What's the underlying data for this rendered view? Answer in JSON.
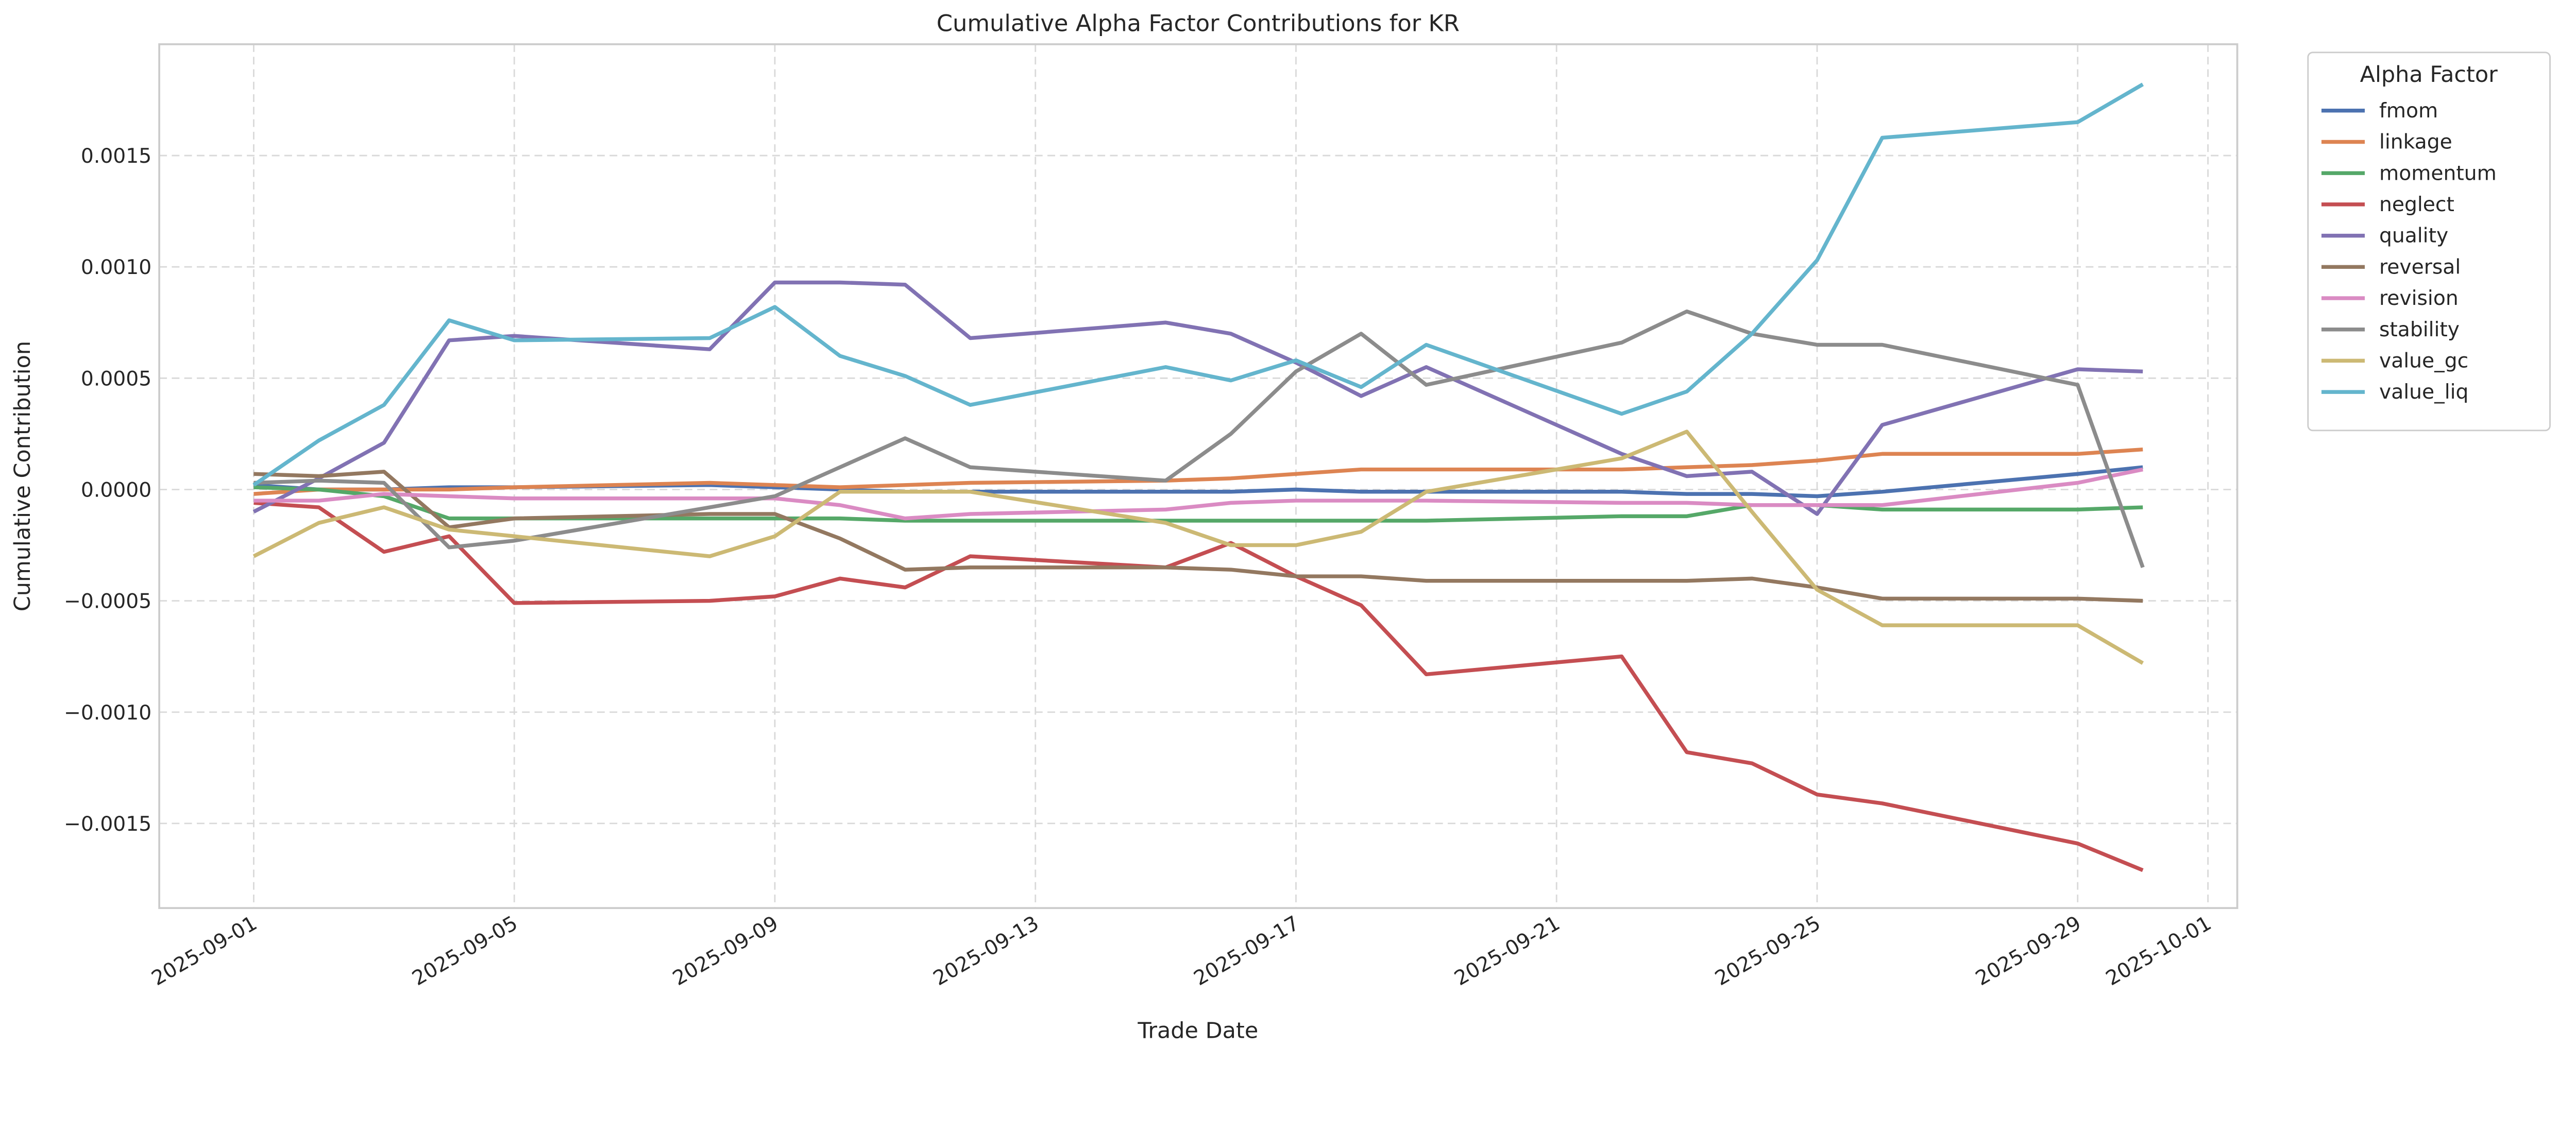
{
  "chart_data": {
    "type": "line",
    "title": "Cumulative Alpha Factor Contributions for KR",
    "xlabel": "Trade Date",
    "ylabel": "Cumulative Contribution",
    "ylim": [
      -0.00188,
      0.002
    ],
    "xlim": [
      "2025-08-30",
      "2025-10-01"
    ],
    "grid": true,
    "legend_title": "Alpha Factor",
    "legend_position": "outside-top-right",
    "x_ticks": [
      "2025-09-01",
      "2025-09-05",
      "2025-09-09",
      "2025-09-13",
      "2025-09-17",
      "2025-09-21",
      "2025-09-25",
      "2025-09-29",
      "2025-10-01"
    ],
    "y_ticks": [
      "−0.0015",
      "−0.0010",
      "−0.0005",
      "0.0000",
      "0.0005",
      "0.0010",
      "0.0015"
    ],
    "y_tick_values": [
      -0.0015,
      -0.001,
      -0.0005,
      0,
      0.0005,
      0.001,
      0.0015
    ],
    "x": [
      "2025-09-01",
      "2025-09-02",
      "2025-09-03",
      "2025-09-04",
      "2025-09-05",
      "2025-09-08",
      "2025-09-09",
      "2025-09-10",
      "2025-09-11",
      "2025-09-12",
      "2025-09-15",
      "2025-09-16",
      "2025-09-17",
      "2025-09-18",
      "2025-09-19",
      "2025-09-22",
      "2025-09-23",
      "2025-09-24",
      "2025-09-25",
      "2025-09-26",
      "2025-09-29",
      "2025-09-30"
    ],
    "series": [
      {
        "name": "fmom",
        "color": "#4c72b0",
        "values": [
          2e-05,
          0.0,
          0.0,
          1e-05,
          1e-05,
          2e-05,
          1e-05,
          0.0,
          -1e-05,
          -1e-05,
          -1e-05,
          -1e-05,
          0.0,
          -1e-05,
          -1e-05,
          -1e-05,
          -2e-05,
          -2e-05,
          -3e-05,
          -1e-05,
          7e-05,
          0.0001
        ]
      },
      {
        "name": "linkage",
        "color": "#dd8452",
        "values": [
          -2e-05,
          0.0,
          0.0,
          0.0,
          1e-05,
          3e-05,
          2e-05,
          1e-05,
          2e-05,
          3e-05,
          4e-05,
          5e-05,
          7e-05,
          9e-05,
          9e-05,
          9e-05,
          0.0001,
          0.00011,
          0.00013,
          0.00016,
          0.00016,
          0.00018
        ]
      },
      {
        "name": "momentum",
        "color": "#55a868",
        "values": [
          1e-05,
          0.0,
          -3e-05,
          -0.00013,
          -0.00013,
          -0.00013,
          -0.00013,
          -0.00013,
          -0.00014,
          -0.00014,
          -0.00014,
          -0.00014,
          -0.00014,
          -0.00014,
          -0.00014,
          -0.00012,
          -0.00012,
          -7e-05,
          -7e-05,
          -9e-05,
          -9e-05,
          -8e-05
        ]
      },
      {
        "name": "neglect",
        "color": "#c44e52",
        "values": [
          -6e-05,
          -8e-05,
          -0.00028,
          -0.00021,
          -0.00051,
          -0.0005,
          -0.00048,
          -0.0004,
          -0.00044,
          -0.0003,
          -0.00035,
          -0.00024,
          -0.00039,
          -0.00052,
          -0.00083,
          -0.00075,
          -0.00118,
          -0.00123,
          -0.00137,
          -0.00141,
          -0.00159,
          -0.00171
        ]
      },
      {
        "name": "quality",
        "color": "#8172b3",
        "values": [
          -0.0001,
          5e-05,
          0.00021,
          0.00067,
          0.00069,
          0.00063,
          0.00093,
          0.00093,
          0.00092,
          0.00068,
          0.00075,
          0.0007,
          0.00057,
          0.00042,
          0.00055,
          0.00016,
          6e-05,
          8e-05,
          -0.00011,
          0.00029,
          0.00054,
          0.00053
        ]
      },
      {
        "name": "reversal",
        "color": "#937860",
        "values": [
          7e-05,
          6e-05,
          8e-05,
          -0.00017,
          -0.00013,
          -0.00011,
          -0.00011,
          -0.00022,
          -0.00036,
          -0.00035,
          -0.00035,
          -0.00036,
          -0.00039,
          -0.00039,
          -0.00041,
          -0.00041,
          -0.00041,
          -0.0004,
          -0.00044,
          -0.00049,
          -0.00049,
          -0.0005
        ]
      },
      {
        "name": "revision",
        "color": "#da8bc3",
        "values": [
          -5e-05,
          -5e-05,
          -2e-05,
          -3e-05,
          -4e-05,
          -4e-05,
          -4e-05,
          -7e-05,
          -0.00013,
          -0.00011,
          -9e-05,
          -6e-05,
          -5e-05,
          -5e-05,
          -5e-05,
          -6e-05,
          -6e-05,
          -7e-05,
          -7e-05,
          -7e-05,
          3e-05,
          9e-05
        ]
      },
      {
        "name": "stability",
        "color": "#8c8c8c",
        "values": [
          3e-05,
          4e-05,
          3e-05,
          -0.00026,
          -0.00023,
          -8e-05,
          -3e-05,
          0.0001,
          0.00023,
          0.0001,
          4e-05,
          0.00025,
          0.00053,
          0.0007,
          0.00047,
          0.00066,
          0.0008,
          0.0007,
          0.00065,
          0.00065,
          0.00047,
          -0.00035
        ]
      },
      {
        "name": "value_gc",
        "color": "#ccb974",
        "values": [
          -0.0003,
          -0.00015,
          -8e-05,
          -0.00018,
          -0.00021,
          -0.0003,
          -0.00021,
          -1e-05,
          -1e-05,
          -1e-05,
          -0.00015,
          -0.00025,
          -0.00025,
          -0.00019,
          -1e-05,
          0.00014,
          0.00026,
          -0.0001,
          -0.00045,
          -0.00061,
          -0.00061,
          -0.00078
        ]
      },
      {
        "name": "value_liq",
        "color": "#64b5cd",
        "values": [
          2e-05,
          0.00022,
          0.00038,
          0.00076,
          0.00067,
          0.00068,
          0.00082,
          0.0006,
          0.00051,
          0.00038,
          0.00055,
          0.00049,
          0.00058,
          0.00046,
          0.00065,
          0.00034,
          0.00044,
          0.0007,
          0.00103,
          0.00158,
          0.00165,
          0.00182
        ]
      }
    ]
  }
}
